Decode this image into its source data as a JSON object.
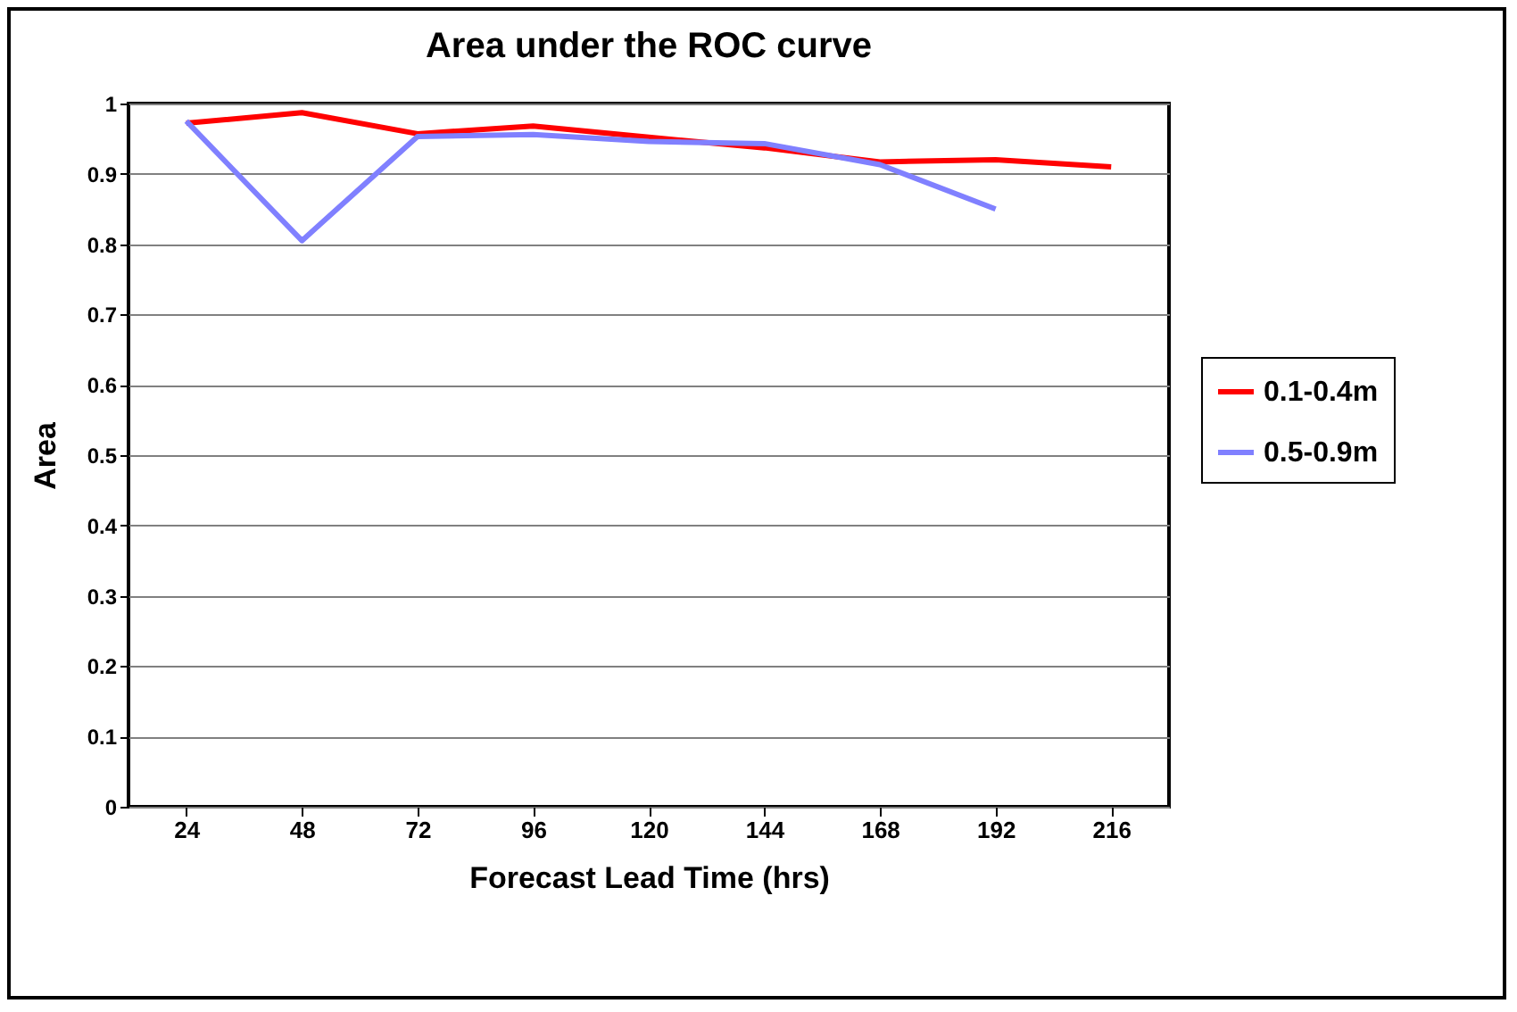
{
  "chart_data": {
    "type": "line",
    "title": "Area under the ROC curve",
    "xlabel": "Forecast Lead Time (hrs)",
    "ylabel": "Area",
    "categories": [
      "24",
      "48",
      "72",
      "96",
      "120",
      "144",
      "168",
      "192",
      "216"
    ],
    "series": [
      {
        "name": "0.1-0.4m",
        "color": "#ff0000",
        "values": [
          0.972,
          0.987,
          0.957,
          0.968,
          0.952,
          0.937,
          0.917,
          0.92,
          0.91
        ]
      },
      {
        "name": "0.5-0.9m",
        "color": "#8080ff",
        "values": [
          0.975,
          0.805,
          0.953,
          0.956,
          0.946,
          0.943,
          0.913,
          0.85,
          null
        ]
      }
    ],
    "ylim": [
      0,
      1
    ],
    "yticks": [
      0,
      0.1,
      0.2,
      0.3,
      0.4,
      0.5,
      0.6,
      0.7,
      0.8,
      0.9,
      1
    ],
    "grid": "y",
    "legend": "right",
    "marker": "none",
    "line_style": "solid"
  }
}
